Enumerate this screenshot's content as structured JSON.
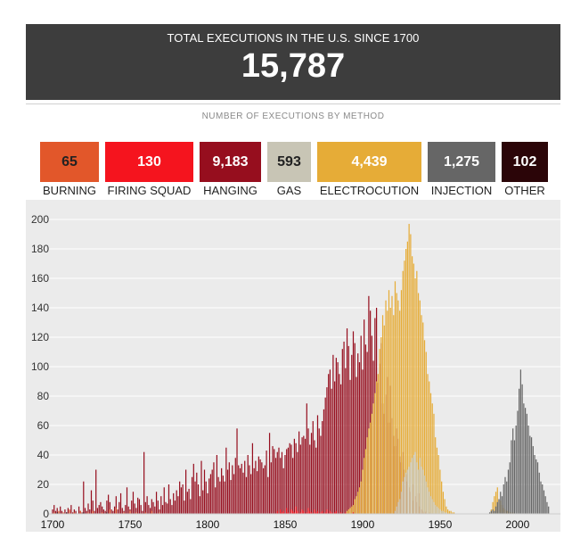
{
  "header": {
    "subtitle": "TOTAL EXECUTIONS IN THE U.S. SINCE 1700",
    "total": "15,787"
  },
  "methods_title": "NUMBER OF EXECUTIONS BY METHOD",
  "methods": [
    {
      "key": "burning",
      "label": "BURNING",
      "count": "65",
      "color": "#e2572a",
      "text_color": "#222222"
    },
    {
      "key": "firing-squad",
      "label": "FIRING SQUAD",
      "count": "130",
      "color": "#f5141e",
      "text_color": "#ffffff"
    },
    {
      "key": "hanging",
      "label": "HANGING",
      "count": "9,183",
      "color": "#960e1e",
      "text_color": "#ffffff"
    },
    {
      "key": "gas",
      "label": "GAS",
      "count": "593",
      "color": "#c8c5b5",
      "text_color": "#222222"
    },
    {
      "key": "electrocution",
      "label": "ELECTROCUTION",
      "count": "4,439",
      "color": "#e6ac37",
      "text_color": "#ffffff"
    },
    {
      "key": "injection",
      "label": "INJECTION",
      "count": "1,275",
      "color": "#666666",
      "text_color": "#ffffff"
    },
    {
      "key": "other",
      "label": "OTHER",
      "count": "102",
      "color": "#2b0508",
      "text_color": "#ffffff"
    }
  ],
  "chart_data": {
    "type": "bar",
    "stacked": false,
    "title": "",
    "xlabel": "",
    "ylabel": "",
    "xlim": [
      1700,
      2015
    ],
    "ylim": [
      0,
      200
    ],
    "xticks": [
      1700,
      1750,
      1800,
      1850,
      1900,
      1950,
      2000
    ],
    "yticks": [
      0,
      20,
      40,
      60,
      80,
      100,
      120,
      140,
      160,
      180,
      200
    ],
    "grid": "horizontal",
    "series": [
      {
        "name": "Hanging",
        "color": "#960e1e",
        "segments": [
          {
            "start": 1700,
            "values": [
              3,
              6,
              2,
              4,
              1,
              5,
              2,
              0,
              3,
              1,
              4,
              2,
              6,
              1,
              3,
              2,
              0,
              5,
              2,
              1,
              22,
              4,
              2,
              7,
              3,
              16,
              9,
              2,
              30,
              4,
              6,
              8,
              5,
              3,
              2,
              9,
              13,
              8,
              3,
              2,
              5,
              12,
              3,
              8,
              14,
              4,
              2,
              6,
              18,
              5,
              3,
              9,
              15,
              7,
              4,
              11,
              10,
              6,
              2,
              42,
              8,
              12,
              6,
              4,
              10,
              8,
              5,
              15,
              9,
              3,
              12,
              6,
              18,
              8,
              7,
              20,
              10,
              6,
              14,
              9,
              16,
              12,
              22,
              18,
              20,
              9,
              30,
              15,
              17,
              10,
              25,
              34,
              22,
              28,
              20,
              12,
              36,
              16,
              30,
              22,
              14,
              24,
              27,
              30,
              35,
              18,
              40,
              25,
              22,
              31,
              26,
              22,
              45,
              30,
              35,
              23,
              33,
              27,
              38,
              58,
              33,
              31,
              34,
              28,
              36,
              25,
              40,
              33,
              27,
              48,
              31,
              36,
              29,
              39,
              37,
              35,
              31,
              33,
              43,
              25,
              55,
              35,
              46,
              44,
              38,
              42,
              45,
              38,
              42,
              31,
              40,
              44,
              45,
              48,
              47,
              38,
              51,
              48,
              42,
              56,
              47,
              52,
              53,
              51,
              75,
              58,
              47,
              55,
              63,
              50,
              45,
              67,
              58,
              53,
              63,
              71,
              79,
              86,
              95,
              98,
              85,
              108,
              90,
              106,
              103,
              95,
              88,
              112,
              117,
              99,
              126,
              114,
              91,
              108,
              124,
              116,
              93,
              109,
              103,
              121,
              98,
              132,
              115,
              110,
              148,
              138,
              121,
              104,
              133,
              140,
              89,
              102,
              116,
              75,
              68,
              81,
              93,
              62,
              87,
              65,
              53,
              46,
              58,
              51,
              39,
              35,
              42,
              30,
              27,
              22,
              18,
              15,
              9,
              20,
              12,
              8,
              14,
              5,
              3,
              2,
              1,
              2,
              0,
              1
            ]
          }
        ]
      },
      {
        "name": "Electrocution",
        "color": "#e6ac37",
        "segments": [
          {
            "start": 1890,
            "values": [
              2,
              3,
              4,
              5,
              6,
              10,
              12,
              15,
              18,
              22,
              30,
              38,
              44,
              52,
              58,
              62,
              68,
              75,
              82,
              90,
              95,
              112,
              120,
              135,
              128,
              145,
              138,
              152,
              140,
              148,
              135,
              158,
              150,
              145,
              138,
              152,
              165,
              172,
              180,
              185,
              197,
              190,
              175,
              170,
              160,
              165,
              150,
              145,
              135,
              130,
              118,
              110,
              95,
              90,
              82,
              75,
              68,
              52,
              45,
              40,
              30,
              22,
              15,
              10,
              5,
              3,
              2,
              2,
              1,
              1,
              0,
              0,
              0,
              0,
              0,
              0,
              0,
              0,
              0,
              0,
              0,
              0,
              0,
              0,
              0,
              0,
              0,
              0,
              0,
              0,
              0,
              0,
              0,
              3,
              8,
              12,
              15,
              18,
              10,
              9,
              6,
              4,
              3,
              2,
              2,
              1,
              1,
              1,
              0,
              0,
              0
            ]
          }
        ]
      },
      {
        "name": "Gas",
        "color": "#c8c5b5",
        "segments": [
          {
            "start": 1921,
            "values": [
              2,
              5,
              8,
              10,
              15,
              22,
              25,
              28,
              30,
              32,
              35,
              38,
              40,
              42,
              35,
              30,
              38,
              32,
              30,
              26,
              22,
              18,
              15,
              12,
              10,
              8,
              6,
              5,
              4,
              3,
              2,
              2,
              1,
              1,
              0,
              0,
              0,
              0,
              0,
              0,
              0,
              0,
              0,
              0,
              0,
              0,
              0,
              0,
              0,
              0,
              0,
              0,
              0,
              0,
              0,
              0,
              0,
              0,
              0,
              0,
              0,
              0,
              0,
              1,
              2,
              2,
              3,
              2,
              1,
              1,
              1,
              0,
              0,
              0,
              0
            ]
          }
        ]
      },
      {
        "name": "Injection",
        "color": "#666666",
        "segments": [
          {
            "start": 1982,
            "values": [
              1,
              2,
              3,
              2,
              5,
              8,
              10,
              15,
              12,
              20,
              25,
              22,
              30,
              35,
              50,
              58,
              50,
              60,
              70,
              85,
              98,
              88,
              75,
              72,
              68,
              60,
              53,
              52,
              46,
              40,
              37,
              35,
              28,
              22,
              20,
              16,
              12,
              8,
              5
            ]
          }
        ]
      },
      {
        "name": "Firing squad",
        "color": "#f5141e",
        "segments": [
          {
            "start": 1845,
            "values": [
              2,
              0,
              3,
              1,
              2,
              0,
              4,
              1,
              0,
              3,
              2,
              1,
              5,
              2,
              0,
              1,
              3,
              2,
              0,
              1,
              4,
              2,
              1,
              0,
              3,
              1,
              2,
              0,
              1,
              2,
              0,
              1,
              3,
              0,
              2,
              1,
              0,
              1,
              2,
              0,
              0,
              1,
              0,
              0,
              1,
              0,
              0,
              0,
              0,
              1
            ]
          }
        ]
      },
      {
        "name": "Burning",
        "color": "#e2572a",
        "segments": [
          {
            "start": 1700,
            "values": [
              0,
              1,
              0,
              0,
              2,
              0,
              0,
              1,
              0,
              0,
              0,
              3,
              0,
              0,
              1,
              0,
              0,
              0,
              2,
              0,
              0,
              0,
              0,
              1,
              0,
              0,
              2,
              0,
              0,
              0,
              0,
              0,
              1,
              0,
              0,
              0,
              0,
              3,
              0,
              0,
              0,
              4,
              0,
              0,
              0,
              0,
              1,
              0,
              0,
              0,
              2,
              0,
              0,
              0,
              1,
              0,
              0,
              0,
              0,
              0,
              1,
              0,
              0,
              0,
              2,
              0,
              0,
              0,
              0,
              1
            ]
          }
        ]
      },
      {
        "name": "Other",
        "color": "#2b0508",
        "segments": [
          {
            "start": 1700,
            "values": [
              0,
              0,
              0,
              1,
              0,
              0,
              0,
              0,
              0,
              1,
              0,
              0,
              0,
              0,
              0,
              0,
              0,
              0,
              0,
              0,
              1,
              0,
              0,
              0,
              0,
              0,
              0,
              0,
              0,
              0,
              0,
              0,
              0,
              0,
              0,
              1,
              0,
              0,
              0,
              0
            ]
          }
        ]
      }
    ]
  }
}
